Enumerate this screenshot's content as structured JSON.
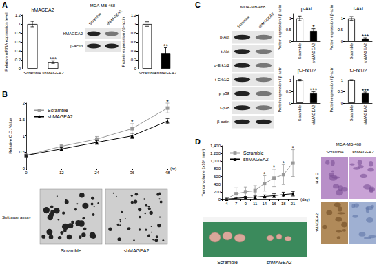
{
  "panel_labels": [
    "A",
    "B",
    "C",
    "D"
  ],
  "chart_data": [
    {
      "type": "bar",
      "title": "hMAGEA2",
      "y_label": "Relative mRNA expression level",
      "categories": [
        "Scramble",
        "shMAGEA2"
      ],
      "values": [
        1,
        0.15
      ],
      "errors": [
        0.06,
        0.03
      ],
      "significance": [
        null,
        "***"
      ],
      "colors": [
        "#ffffff",
        "#ffffff"
      ],
      "ylim": [
        0,
        1.2
      ],
      "yticks": [
        0,
        0.2,
        0.4,
        0.6,
        0.8,
        1,
        1.2
      ],
      "grid": false
    },
    {
      "type": "bar",
      "y_label": "Protein expression / β-actin",
      "categories": [
        "Scramble",
        "shMAGEA2"
      ],
      "values": [
        1,
        0.35
      ],
      "errors": [
        0.05,
        0.12
      ],
      "significance": [
        null,
        "**"
      ],
      "colors": [
        "#ffffff",
        "#000000"
      ],
      "ylim": [
        0,
        1.2
      ],
      "yticks": [
        0,
        0.2,
        0.4,
        0.6,
        0.8,
        1,
        1.2
      ],
      "grid": false
    },
    {
      "type": "line",
      "y_label": "Relative O.D. Value",
      "x_label": "(hr)",
      "x": [
        0,
        12,
        24,
        36,
        48
      ],
      "xlim": [
        0,
        48
      ],
      "xticks": [
        0,
        12,
        24,
        36,
        48
      ],
      "ylim": [
        0,
        2
      ],
      "yticks": [
        0,
        0.5,
        1,
        1.5,
        2
      ],
      "legend": "upper left",
      "grid": false,
      "series": [
        {
          "name": "Scramble",
          "color": "#999999",
          "marker": "square",
          "values": [
            0.4,
            0.68,
            0.9,
            1.22,
            1.85
          ],
          "errors": [
            0.02,
            0.06,
            0.08,
            0.15,
            0.15
          ],
          "significance": [
            null,
            null,
            null,
            "*",
            "*"
          ]
        },
        {
          "name": "shMAGEA2",
          "color": "#000000",
          "marker": "triangle",
          "values": [
            0.4,
            0.6,
            0.8,
            1,
            1.45
          ],
          "errors": [
            0.02,
            0.04,
            0.06,
            0.08,
            0.08
          ]
        }
      ]
    },
    {
      "type": "bar",
      "title": "p-Akt",
      "y_label": "Protein expression / β-actin",
      "categories": [
        "Scramble",
        "shMAGEA2"
      ],
      "values": [
        1,
        0.45
      ],
      "errors": [
        0.1,
        0.1
      ],
      "significance": [
        null,
        "*"
      ],
      "colors": [
        "#ffffff",
        "#000000"
      ],
      "ylim": [
        0,
        1.2
      ],
      "yticks": [
        0,
        0.5,
        1
      ],
      "grid": false
    },
    {
      "type": "bar",
      "title": "t-Akt",
      "y_label": "Protein expression / β-actin",
      "categories": [
        "Scramble",
        "shMAGEA2"
      ],
      "values": [
        1,
        0.12
      ],
      "errors": [
        0.08,
        0.03
      ],
      "significance": [
        null,
        "***"
      ],
      "colors": [
        "#ffffff",
        "#000000"
      ],
      "ylim": [
        0,
        1.2
      ],
      "yticks": [
        0,
        0.5,
        1
      ],
      "grid": false
    },
    {
      "type": "bar",
      "title": "p-Erk1/2",
      "y_label": "Protein expression / β-actin",
      "categories": [
        "Scramble",
        "shMAGEA2"
      ],
      "values": [
        1,
        0.45
      ],
      "errors": [
        0.03,
        0.05
      ],
      "significance": [
        null,
        "***"
      ],
      "colors": [
        "#ffffff",
        "#000000"
      ],
      "ylim": [
        0,
        1.2
      ],
      "yticks": [
        0,
        0.5,
        1
      ],
      "grid": false
    },
    {
      "type": "bar",
      "title": "t-Erk1/2",
      "y_label": "Protein expression / β-actin",
      "categories": [
        "Scramble",
        "shMAGEA2"
      ],
      "values": [
        1,
        0.45
      ],
      "errors": [
        0.02,
        0.03
      ],
      "significance": [
        null,
        "***"
      ],
      "colors": [
        "#ffffff",
        "#000000"
      ],
      "ylim": [
        0,
        1.2
      ],
      "yticks": [
        0,
        0.5,
        1
      ],
      "grid": false
    },
    {
      "type": "line",
      "y_label": "Tumor volume (x10³ mm³)",
      "x_label": "(day)",
      "x": [
        "4",
        "7",
        "9",
        "11",
        "14",
        "16",
        "18",
        "21"
      ],
      "ylim": [
        0,
        1400
      ],
      "yticks": [
        0,
        200,
        400,
        600,
        800,
        {
          "value": 1000,
          "label": "1,000"
        },
        {
          "value": 1200,
          "label": "1,200"
        },
        {
          "value": 1400,
          "label": "1,400"
        }
      ],
      "legend": "upper left",
      "grid": false,
      "series": [
        {
          "name": "Scramble",
          "color": "#999999",
          "marker": "square",
          "values": [
            20,
            150,
            200,
            230,
            420,
            560,
            650,
            950
          ],
          "errors": [
            20,
            150,
            120,
            130,
            200,
            230,
            260,
            350
          ],
          "significance": [
            null,
            null,
            null,
            null,
            "*",
            "*",
            "*",
            "*"
          ]
        },
        {
          "name": "shMAGEA2",
          "color": "#000000",
          "marker": "triangle",
          "values": [
            10,
            30,
            50,
            60,
            80,
            100,
            130,
            150
          ],
          "errors": [
            10,
            20,
            30,
            30,
            40,
            50,
            60,
            60
          ]
        }
      ]
    }
  ],
  "blots": [
    {
      "cell_line": "MDA-MB-468",
      "lanes": [
        "Scramble",
        "shMAGEA2"
      ],
      "bands": [
        "hMAGEA2",
        "β-actin"
      ]
    },
    {
      "cell_line": "MDA-MB-468",
      "lanes": [
        "Scramble",
        "shMAGEA2"
      ],
      "bands": [
        "p-Akt",
        "t-Akt",
        "p-Erk1/2",
        "t-Erk1/2",
        "p-p38",
        "t-p38",
        "β-actin"
      ]
    }
  ],
  "soft_agar": {
    "caption": "Soft agar assay",
    "labels": [
      "Scramble",
      "shMAGEA2"
    ]
  },
  "tumor_photo": {
    "labels": [
      "Scramble",
      "shMAGEA2"
    ]
  },
  "histology": {
    "cell_line": "MDA-MB-468",
    "columns": [
      "Scramble",
      "shMAGEA2"
    ],
    "rows": [
      "H & E",
      "hMAGEA2"
    ]
  }
}
